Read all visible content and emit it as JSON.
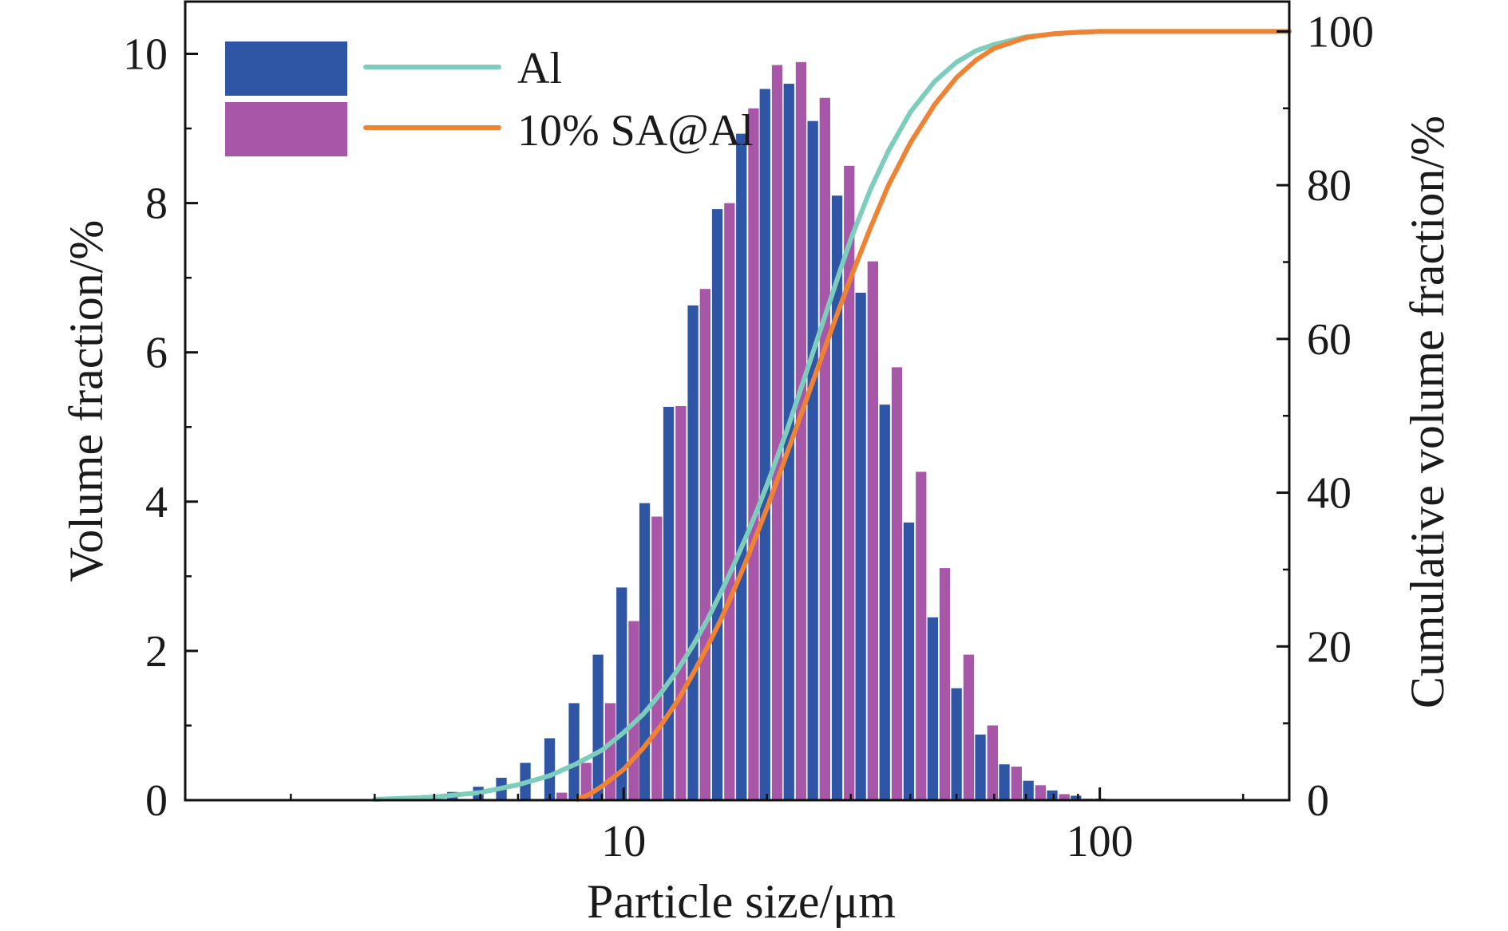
{
  "chart_data": {
    "type": "bar",
    "xlabel": "Particle size/μm",
    "ylabel_left": "Volume fraction/%",
    "ylabel_right": "Cumulative volume fraction/%",
    "x_scale": "log",
    "xlim": [
      1.2,
      250
    ],
    "ylim_left": [
      0,
      10.7
    ],
    "ylim_right": [
      0,
      100
    ],
    "x_tick_labels": [
      "10",
      "100"
    ],
    "y_left_tick_labels": [
      "0",
      "2",
      "4",
      "6",
      "8",
      "10"
    ],
    "y_right_tick_labels": [
      "0",
      "20",
      "40",
      "60",
      "80",
      "100"
    ],
    "legend": {
      "placement": "top-left",
      "entries": [
        "Al",
        "10% SA@Al"
      ]
    },
    "colors": {
      "al_bar": "#2f55a5",
      "sa_bar": "#a857a8",
      "al_line": "#7ccdbb",
      "sa_line": "#f08233"
    },
    "bars": {
      "x": [
        3.2,
        3.6,
        4.0,
        4.5,
        5.1,
        5.7,
        6.4,
        7.2,
        8.1,
        9.1,
        10.2,
        11.4,
        12.8,
        14.4,
        16.2,
        18.2,
        20.4,
        22.9,
        25.7,
        28.9,
        32.4,
        36.4,
        40.9,
        45.9,
        51.5,
        57.8,
        64.9,
        72.9,
        81.8,
        91.8,
        103.1
      ],
      "series": [
        {
          "name": "Al",
          "values": [
            0.02,
            0.04,
            0.07,
            0.11,
            0.18,
            0.3,
            0.5,
            0.83,
            1.3,
            1.95,
            2.85,
            3.98,
            5.27,
            6.63,
            7.92,
            8.93,
            9.53,
            9.6,
            9.1,
            8.1,
            6.8,
            5.3,
            3.72,
            2.45,
            1.5,
            0.88,
            0.48,
            0.26,
            0.13,
            0.06,
            0.02
          ]
        },
        {
          "name": "10% SA@Al",
          "values": [
            0,
            0,
            0,
            0,
            0,
            0,
            0,
            0.1,
            0.5,
            1.3,
            2.4,
            3.8,
            5.28,
            6.85,
            8.0,
            9.27,
            9.85,
            9.89,
            9.41,
            8.5,
            7.22,
            5.8,
            4.4,
            3.11,
            1.95,
            1.0,
            0.45,
            0.2,
            0.08,
            0.02,
            0
          ]
        }
      ]
    },
    "lines": {
      "series": [
        {
          "name": "Al",
          "x": [
            3,
            4,
            5,
            6,
            7,
            8,
            9,
            10,
            11,
            12,
            13,
            14,
            15,
            16,
            17,
            18,
            19,
            20,
            22,
            24,
            26,
            28,
            30,
            33,
            36,
            40,
            45,
            50,
            55,
            60,
            70,
            80,
            100,
            130,
            250
          ],
          "y": [
            0.1,
            0.4,
            1.0,
            2.0,
            3.2,
            4.8,
            6.5,
            8.8,
            11.2,
            14.0,
            17.0,
            20.2,
            23.5,
            27.0,
            30.5,
            34.0,
            37.5,
            41.0,
            48.0,
            55.0,
            61.5,
            67.5,
            73.0,
            79.5,
            84.5,
            89.5,
            93.5,
            96.0,
            97.5,
            98.3,
            99.3,
            99.7,
            100,
            100,
            100
          ]
        },
        {
          "name": "10% SA@Al",
          "x": [
            8,
            8.5,
            9,
            10,
            11,
            12,
            13,
            14,
            15,
            16,
            17,
            18,
            19,
            20,
            22,
            24,
            26,
            28,
            30,
            33,
            36,
            40,
            45,
            50,
            55,
            60,
            70,
            80,
            90,
            100,
            130,
            250
          ],
          "y": [
            0.1,
            0.8,
            1.8,
            4.0,
            6.8,
            9.8,
            13.0,
            16.5,
            20.0,
            23.5,
            27.2,
            30.8,
            34.5,
            38.0,
            45.0,
            51.5,
            57.5,
            63.0,
            68.0,
            74.5,
            80.0,
            85.5,
            90.5,
            94.0,
            96.3,
            97.8,
            99.2,
            99.7,
            99.9,
            100,
            100,
            100
          ]
        }
      ]
    }
  }
}
